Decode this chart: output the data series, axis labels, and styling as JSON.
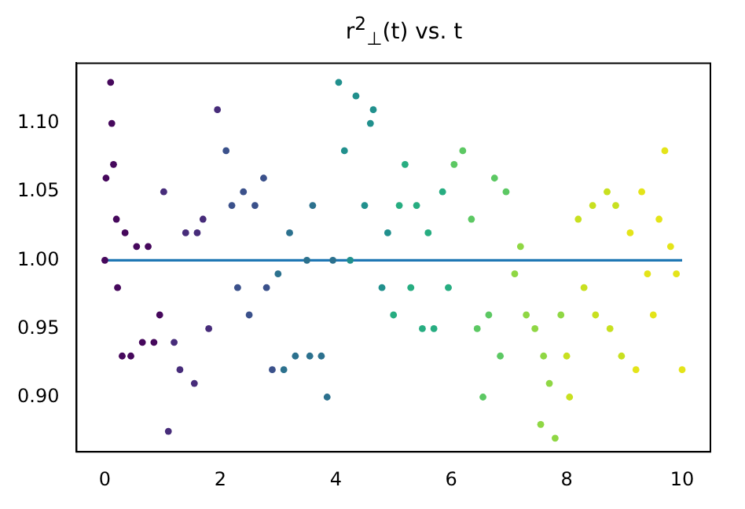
{
  "chart_data": {
    "type": "scatter",
    "title": "r$^{2}$$_{⊥}$(t) vs. t",
    "xlim": [
      -0.49,
      10.49
    ],
    "ylim": [
      0.86,
      1.144
    ],
    "xticks": [
      0,
      2,
      4,
      6,
      8,
      10
    ],
    "yticks": [
      {
        "value": 0.9,
        "label": "0.90"
      },
      {
        "value": 0.95,
        "label": "0.95"
      },
      {
        "value": 1.0,
        "label": "1.00"
      },
      {
        "value": 1.05,
        "label": "1.05"
      },
      {
        "value": 1.1,
        "label": "1.10"
      }
    ],
    "grid": false,
    "legend": false,
    "marker": "circle",
    "series": [
      {
        "color": "#46085c",
        "x": [
          0,
          0.02,
          0.1,
          0.12,
          0.15,
          0.2,
          0.22,
          0.3,
          0.35,
          0.45,
          0.55,
          0.65,
          0.75,
          0.85,
          0.95
        ],
        "values": [
          1.0,
          1.06,
          1.13,
          1.1,
          1.07,
          1.03,
          0.98,
          0.93,
          1.02,
          0.93,
          1.01,
          0.94,
          1.01,
          0.94,
          0.96
        ]
      },
      {
        "color": "#472c7a",
        "x": [
          1.02,
          1.1,
          1.2,
          1.3,
          1.4,
          1.55,
          1.6,
          1.7,
          1.8,
          1.95
        ],
        "values": [
          1.05,
          0.875,
          0.94,
          0.92,
          1.02,
          0.91,
          1.02,
          1.03,
          0.95,
          1.11
        ]
      },
      {
        "color": "#3b518b",
        "x": [
          2.1,
          2.2,
          2.3,
          2.4,
          2.5,
          2.6,
          2.75,
          2.8,
          2.9
        ],
        "values": [
          1.08,
          1.04,
          0.98,
          1.05,
          0.96,
          1.04,
          1.06,
          0.98,
          0.92
        ]
      },
      {
        "color": "#2c718e",
        "x": [
          3.0,
          3.1,
          3.2,
          3.3,
          3.5,
          3.55,
          3.6,
          3.75,
          3.85,
          3.95
        ],
        "values": [
          0.99,
          0.92,
          1.02,
          0.93,
          1.0,
          0.93,
          1.04,
          0.93,
          0.9,
          1.0
        ]
      },
      {
        "color": "#21908d",
        "x": [
          4.05,
          4.15,
          4.25,
          4.35,
          4.5,
          4.6,
          4.65,
          4.8,
          4.9
        ],
        "values": [
          1.13,
          1.08,
          1.0,
          1.12,
          1.04,
          1.1,
          1.11,
          0.98,
          1.02
        ]
      },
      {
        "color": "#27ad81",
        "x": [
          5.0,
          5.1,
          5.2,
          5.3,
          5.4,
          5.5,
          5.6,
          5.7,
          5.85,
          5.95
        ],
        "values": [
          0.96,
          1.04,
          1.07,
          0.98,
          1.04,
          0.95,
          1.02,
          0.95,
          1.05,
          0.98
        ]
      },
      {
        "color": "#5cc863",
        "x": [
          6.05,
          6.2,
          6.35,
          6.45,
          6.55,
          6.65,
          6.75,
          6.85,
          6.95
        ],
        "values": [
          1.07,
          1.08,
          1.03,
          0.95,
          0.9,
          0.96,
          1.06,
          0.93,
          1.05
        ]
      },
      {
        "color": "#8fd744",
        "x": [
          7.1,
          7.2,
          7.3,
          7.45,
          7.55,
          7.6,
          7.7,
          7.8,
          7.9
        ],
        "values": [
          0.99,
          1.01,
          0.96,
          0.95,
          0.88,
          0.93,
          0.91,
          0.87,
          0.96
        ]
      },
      {
        "color": "#c8e020",
        "x": [
          8.0,
          8.05,
          8.2,
          8.3,
          8.45,
          8.5,
          8.7,
          8.75,
          8.85,
          8.95
        ],
        "values": [
          0.93,
          0.9,
          1.03,
          0.98,
          1.04,
          0.96,
          1.05,
          0.95,
          1.04,
          0.93
        ]
      },
      {
        "color": "#e4e419",
        "x": [
          9.1,
          9.2,
          9.3,
          9.4,
          9.5,
          9.6,
          9.7,
          9.8,
          9.9,
          10.0
        ],
        "values": [
          1.02,
          0.92,
          1.05,
          0.99,
          0.96,
          1.03,
          1.08,
          1.01,
          0.99,
          0.92
        ]
      },
      {
        "type": "line",
        "color": "#1f77b4",
        "x": [
          0,
          10
        ],
        "values": [
          1.0,
          1.0
        ],
        "marker": "none"
      }
    ]
  }
}
